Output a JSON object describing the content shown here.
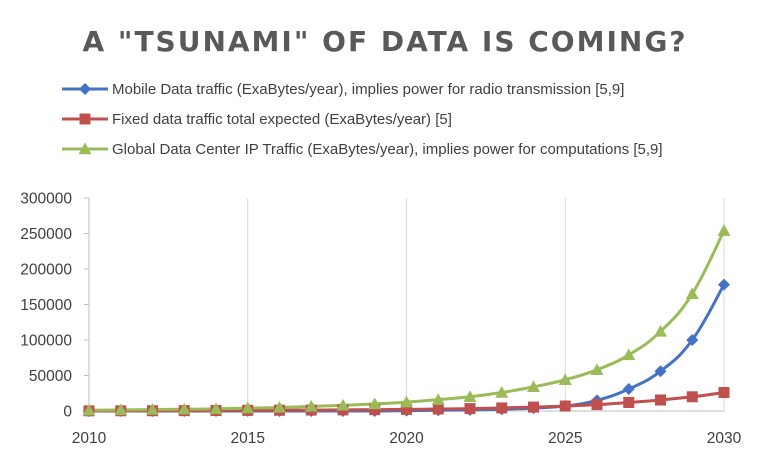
{
  "chart_data": {
    "type": "line",
    "title": "A \"TSUNAMI\" OF DATA IS COMING?",
    "xlabel": "",
    "ylabel": "",
    "x": [
      2010,
      2011,
      2012,
      2013,
      2014,
      2015,
      2016,
      2017,
      2018,
      2019,
      2020,
      2021,
      2022,
      2023,
      2024,
      2025,
      2026,
      2027,
      2028,
      2029,
      2030
    ],
    "xlim": [
      2010,
      2030
    ],
    "ylim": [
      0,
      300000
    ],
    "x_ticks": [
      "2010",
      "2015",
      "2020",
      "2025",
      "2030"
    ],
    "y_ticks": [
      "0",
      "50000",
      "100000",
      "150000",
      "200000",
      "250000",
      "300000"
    ],
    "grid": "vertical",
    "legend_position": "top",
    "series": [
      {
        "name": "Mobile Data traffic (ExaBytes/year), implies power for radio transmission [5,9]",
        "color": "#4472c4",
        "marker": "diamond",
        "values": [
          0,
          0,
          0,
          0,
          0,
          0,
          0,
          0,
          0,
          0,
          500,
          1000,
          1500,
          2500,
          4000,
          7000,
          15000,
          31000,
          56000,
          100000,
          178000
        ]
      },
      {
        "name": "Fixed data traffic total expected (ExaBytes/year) [5]",
        "color": "#c0504d",
        "marker": "square",
        "values": [
          200,
          300,
          400,
          500,
          700,
          900,
          1100,
          1300,
          1600,
          1900,
          2300,
          2800,
          3400,
          4300,
          5500,
          7000,
          9000,
          12000,
          15500,
          20000,
          26000
        ]
      },
      {
        "name": "Global Data Center IP Traffic (ExaBytes/year), implies power for computations [5,9]",
        "color": "#9bbb59",
        "marker": "triangle",
        "values": [
          1000,
          1500,
          2000,
          2500,
          3000,
          4000,
          5000,
          6500,
          8000,
          10000,
          12500,
          16000,
          20000,
          26000,
          34000,
          44000,
          58000,
          79000,
          112000,
          165000,
          254000
        ]
      }
    ]
  }
}
